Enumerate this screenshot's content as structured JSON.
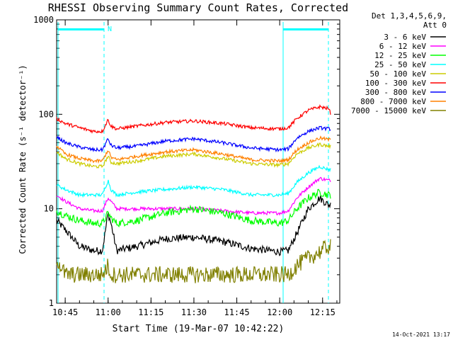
{
  "chart_data": {
    "type": "line",
    "title": "RHESSI Observing Summary Count Rates, Corrected",
    "xlabel": "Start Time (19-Mar-07 10:42:22)",
    "ylabel": "Corrected Count Rate (s⁻¹ detector⁻¹)",
    "y_scale": "log",
    "ylim": [
      1,
      1000
    ],
    "xlim_minutes": [
      "10:42",
      "12:21"
    ],
    "x_ticks": [
      "10:45",
      "11:00",
      "11:15",
      "11:30",
      "11:45",
      "12:00",
      "12:15"
    ],
    "y_ticks": [
      "1",
      "10",
      "100",
      "1000"
    ],
    "grid": false,
    "legend_position": "top-right",
    "legend_header": [
      "Det 1,3,4,5,6,9,",
      "Att 0"
    ],
    "annotations": {
      "night_marker": "N",
      "footer_date": "14-Oct-2021 13:17"
    },
    "x": [
      "10:42",
      "10:45",
      "10:50",
      "10:55",
      "10:58",
      "11:00",
      "11:01",
      "11:03",
      "11:10",
      "11:20",
      "11:30",
      "11:40",
      "11:50",
      "12:00",
      "12:03",
      "12:06",
      "12:10",
      "12:14",
      "12:17",
      "12:18"
    ],
    "series": [
      {
        "name": "3 - 6 keV",
        "color": "#000000",
        "values": [
          7.5,
          6,
          4,
          3.6,
          3.6,
          9,
          7,
          3.6,
          4,
          4.8,
          5,
          4.5,
          3.8,
          3.5,
          3.6,
          5.5,
          10,
          13,
          11,
          11
        ]
      },
      {
        "name": "6 - 12 keV",
        "color": "#ff00ff",
        "values": [
          14,
          12,
          10,
          9.5,
          9.5,
          13,
          12,
          10,
          10,
          10,
          10,
          9.5,
          9,
          9,
          9.5,
          13,
          17,
          21,
          20,
          20
        ]
      },
      {
        "name": "12 - 25 keV",
        "color": "#00ff00",
        "values": [
          9.5,
          8.5,
          7.5,
          7,
          7,
          9,
          8,
          7,
          7.5,
          9,
          10,
          9,
          7.5,
          7,
          7.5,
          10,
          13,
          15,
          14,
          14
        ]
      },
      {
        "name": "25 - 50 keV",
        "color": "#00ffff",
        "values": [
          18,
          16,
          14,
          14,
          14,
          20,
          16,
          14,
          15,
          16,
          17,
          16,
          14,
          14,
          14.5,
          19,
          24,
          28,
          26,
          26
        ]
      },
      {
        "name": "50 - 100 keV",
        "color": "#cccc00",
        "values": [
          40,
          34,
          30,
          28,
          28,
          36,
          31,
          30,
          32,
          36,
          38,
          34,
          30,
          29,
          30,
          38,
          44,
          48,
          46,
          46
        ]
      },
      {
        "name": "100 - 300 keV",
        "color": "#ff0000",
        "values": [
          90,
          80,
          72,
          66,
          66,
          88,
          75,
          70,
          75,
          82,
          85,
          80,
          72,
          70,
          72,
          90,
          110,
          120,
          115,
          100
        ]
      },
      {
        "name": "300 - 800 keV",
        "color": "#0000ff",
        "values": [
          58,
          50,
          45,
          42,
          42,
          55,
          47,
          44,
          46,
          52,
          55,
          50,
          44,
          42,
          43,
          56,
          66,
          72,
          70,
          70
        ]
      },
      {
        "name": "800 - 7000 keV",
        "color": "#ff8000",
        "values": [
          46,
          38,
          34,
          32,
          32,
          42,
          35,
          33,
          36,
          40,
          42,
          38,
          33,
          32,
          33,
          42,
          50,
          56,
          54,
          54
        ]
      },
      {
        "name": "7000 - 15000 keV",
        "color": "#808000",
        "values": [
          3,
          2,
          2,
          2,
          2,
          2.5,
          2,
          2,
          2,
          2,
          2,
          2,
          2,
          2,
          2,
          2.5,
          3,
          3.5,
          4,
          4
        ]
      }
    ]
  }
}
